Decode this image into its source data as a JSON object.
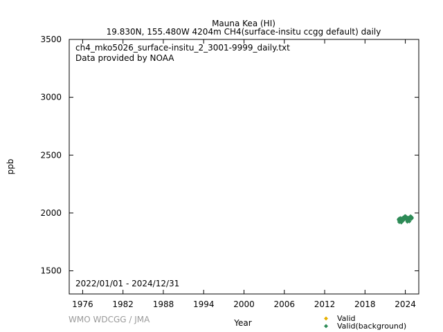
{
  "header": {
    "title": "Mauna Kea (HI)",
    "subtitle": "19.830N, 155.480W 4204m    CH4(surface-insitu ccgg default) daily"
  },
  "annotations": {
    "file": "ch4_mko5026_surface-insitu_2_3001-9999_daily.txt",
    "provider": "Data provided by NOAA",
    "period": "2022/01/01 - 2024/12/31"
  },
  "footer": {
    "credit": "WMO WDCGG / JMA"
  },
  "colors": {
    "valid": "#e6b000",
    "background": "#2e8b57"
  },
  "chart_data": {
    "type": "scatter",
    "xlabel": "Year",
    "ylabel": "ppb",
    "xlim": [
      1974,
      2026
    ],
    "ylim": [
      1300,
      3500
    ],
    "xticks": [
      1976,
      1982,
      1988,
      1994,
      2000,
      2006,
      2012,
      2018,
      2024
    ],
    "yticks": [
      1500,
      2000,
      2500,
      3000,
      3500
    ],
    "legend_position": "bottom-right",
    "series": [
      {
        "name": "Valid",
        "marker": "diamond",
        "color": "#e6b000",
        "points": []
      },
      {
        "name": "Valid(background)",
        "marker": "diamond",
        "color": "#2e8b57",
        "points": [
          [
            2023.02,
            1942
          ],
          [
            2023.05,
            1948
          ],
          [
            2023.08,
            1935
          ],
          [
            2023.11,
            1952
          ],
          [
            2023.14,
            1940
          ],
          [
            2023.17,
            1930
          ],
          [
            2023.2,
            1945
          ],
          [
            2023.23,
            1950
          ],
          [
            2023.26,
            1938
          ],
          [
            2023.29,
            1955
          ],
          [
            2023.32,
            1928
          ],
          [
            2023.35,
            1943
          ],
          [
            2023.38,
            1947
          ],
          [
            2023.41,
            1936
          ],
          [
            2023.44,
            1951
          ],
          [
            2023.47,
            1939
          ],
          [
            2023.5,
            1925
          ],
          [
            2023.53,
            1944
          ],
          [
            2023.56,
            1949
          ],
          [
            2023.59,
            1933
          ],
          [
            2023.62,
            1941
          ],
          [
            2023.65,
            1958
          ],
          [
            2023.68,
            1946
          ],
          [
            2023.71,
            1937
          ],
          [
            2023.74,
            1953
          ],
          [
            2023.77,
            1960
          ],
          [
            2023.8,
            1948
          ],
          [
            2023.83,
            1966
          ],
          [
            2023.86,
            1955
          ],
          [
            2023.89,
            1962
          ],
          [
            2023.92,
            1970
          ],
          [
            2023.95,
            1958
          ],
          [
            2023.98,
            1964
          ],
          [
            2024.01,
            1972
          ],
          [
            2024.04,
            1960
          ],
          [
            2024.07,
            1955
          ],
          [
            2024.1,
            1968
          ],
          [
            2024.13,
            1950
          ],
          [
            2024.16,
            1945
          ],
          [
            2024.19,
            1962
          ],
          [
            2024.22,
            1940
          ],
          [
            2024.25,
            1957
          ],
          [
            2024.28,
            1948
          ],
          [
            2024.31,
            1935
          ],
          [
            2024.34,
            1952
          ],
          [
            2024.37,
            1944
          ],
          [
            2024.4,
            1958
          ],
          [
            2024.43,
            1938
          ],
          [
            2024.46,
            1950
          ],
          [
            2024.49,
            1946
          ],
          [
            2024.52,
            1933
          ],
          [
            2024.55,
            1955
          ],
          [
            2024.58,
            1942
          ],
          [
            2024.61,
            1960
          ],
          [
            2024.64,
            1948
          ],
          [
            2024.67,
            1952
          ],
          [
            2024.7,
            1965
          ],
          [
            2024.73,
            1958
          ],
          [
            2024.76,
            1970
          ],
          [
            2024.79,
            1962
          ],
          [
            2024.82,
            1955
          ],
          [
            2024.85,
            1968
          ],
          [
            2024.88,
            1960
          ],
          [
            2024.91,
            1950
          ],
          [
            2024.94,
            1963
          ],
          [
            2024.97,
            1957
          ],
          [
            2023.1,
            1922
          ],
          [
            2023.4,
            1918
          ],
          [
            2024.3,
            1925
          ],
          [
            2024.6,
            1928
          ]
        ]
      }
    ]
  }
}
